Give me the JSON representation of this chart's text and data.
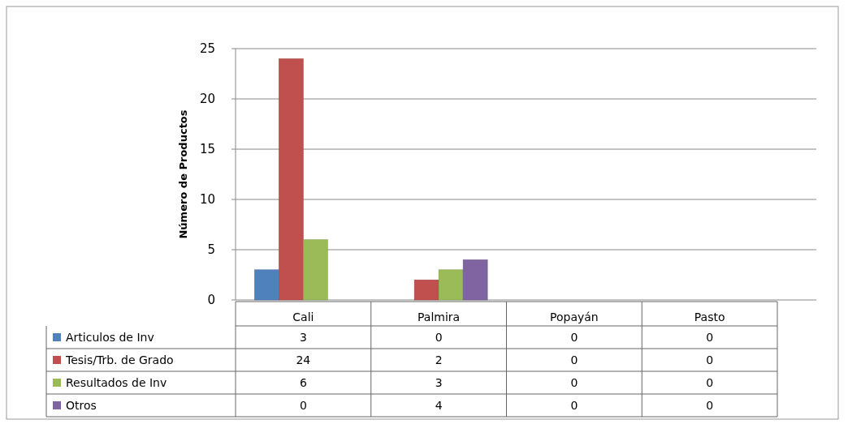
{
  "chart_data": {
    "type": "bar",
    "ylabel": "Número de Productos",
    "categories": [
      "Cali",
      "Palmira",
      "Popayán",
      "Pasto"
    ],
    "series": [
      {
        "name": "Articulos de Inv",
        "color": "#4f81bd",
        "values": [
          3,
          0,
          0,
          0
        ]
      },
      {
        "name": "Tesis/Trb. de Grado",
        "color": "#c0504d",
        "values": [
          24,
          2,
          0,
          0
        ]
      },
      {
        "name": "Resultados de Inv",
        "color": "#9bbb59",
        "values": [
          6,
          3,
          0,
          0
        ]
      },
      {
        "name": "Otros",
        "color": "#8064a2",
        "values": [
          0,
          4,
          0,
          0
        ]
      }
    ],
    "ylim": [
      0,
      25
    ],
    "yticks": [
      0,
      5,
      10,
      15,
      20,
      25
    ],
    "grid": "y",
    "legend": "bottom",
    "data_labels": true
  }
}
